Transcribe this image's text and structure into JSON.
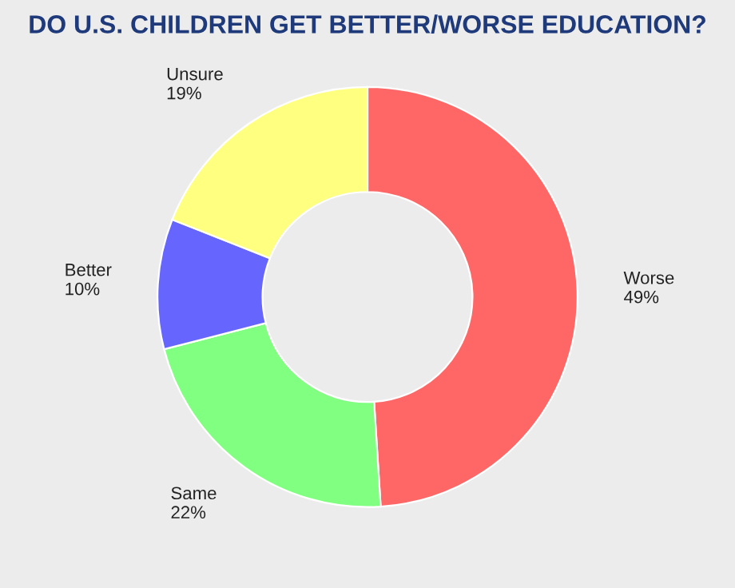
{
  "chart_data": {
    "type": "donut",
    "title": "DO U.S. CHILDREN GET BETTER/WORSE EDUCATION?",
    "categories": [
      "Worse",
      "Same",
      "Better",
      "Unsure"
    ],
    "values": [
      49,
      22,
      10,
      19
    ],
    "value_labels": [
      "49%",
      "22%",
      "10%",
      "19%"
    ],
    "colors": [
      "#ff6666",
      "#80ff80",
      "#6666ff",
      "#ffff80"
    ],
    "legend": false
  }
}
